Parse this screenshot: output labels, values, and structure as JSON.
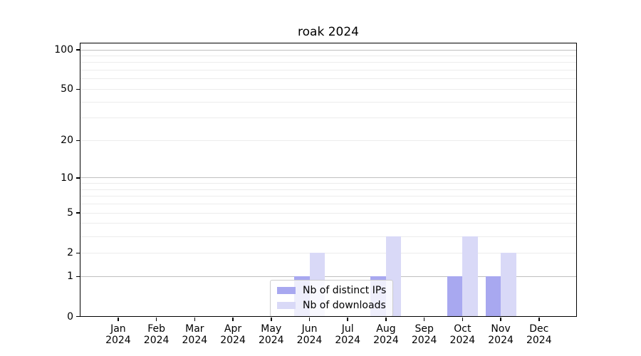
{
  "title": "roak 2024",
  "chart_data": {
    "type": "bar",
    "yscale": "log1p",
    "categories": [
      "Jan",
      "Feb",
      "Mar",
      "Apr",
      "May",
      "Jun",
      "Jul",
      "Aug",
      "Sep",
      "Oct",
      "Nov",
      "Dec"
    ],
    "category_year": "2024",
    "series": [
      {
        "name": "Nb of distinct IPs",
        "color": "#a8a8f0",
        "values": [
          0,
          0,
          0,
          0,
          0,
          1,
          0,
          1,
          0,
          1,
          1,
          0
        ]
      },
      {
        "name": "Nb of downloads",
        "color": "#d9d9f7",
        "values": [
          0,
          0,
          0,
          0,
          0,
          2,
          0,
          3,
          0,
          3,
          2,
          0
        ]
      }
    ],
    "y_ticks": [
      {
        "v": 0,
        "label": "0"
      },
      {
        "v": 1,
        "label": "1"
      },
      {
        "v": 2,
        "label": "2"
      },
      {
        "v": 5,
        "label": "5"
      },
      {
        "v": 10,
        "label": "10"
      },
      {
        "v": 20,
        "label": "20"
      },
      {
        "v": 50,
        "label": "50"
      },
      {
        "v": 100,
        "label": "100"
      }
    ],
    "y_gridlines_strong": [
      1,
      10,
      100
    ],
    "y_gridlines_weak": [
      2,
      3,
      4,
      5,
      6,
      7,
      8,
      9,
      20,
      30,
      40,
      50,
      60,
      70,
      80,
      90
    ],
    "ylim": [
      0,
      110
    ],
    "legend_position": "lower center inside",
    "grid": "horizontal only"
  },
  "colors": {
    "bar_distinct_ips": "#a8a8f0",
    "bar_downloads": "#d9d9f7",
    "grid_strong": "#bfbfbf",
    "grid_weak": "#ececec",
    "spine": "#000000",
    "legend_border": "#cccccc"
  }
}
